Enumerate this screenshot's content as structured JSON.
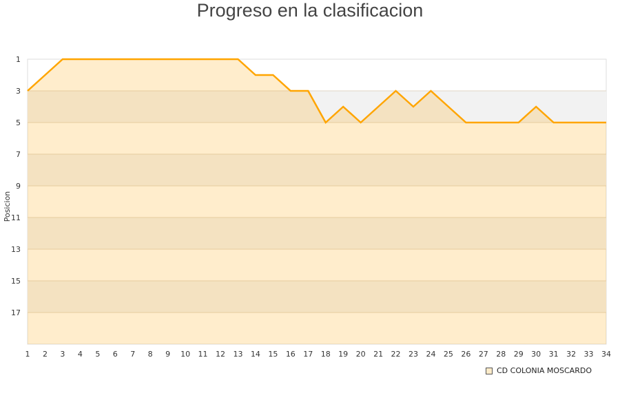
{
  "chart_data": {
    "type": "area",
    "title": "Progreso en la clasificacion",
    "xlabel": "",
    "ylabel": "Posicion",
    "x": [
      1,
      2,
      3,
      4,
      5,
      6,
      7,
      8,
      9,
      10,
      11,
      12,
      13,
      14,
      15,
      16,
      17,
      18,
      19,
      20,
      21,
      22,
      23,
      24,
      25,
      26,
      27,
      28,
      29,
      30,
      31,
      32,
      33,
      34
    ],
    "series": [
      {
        "name": "CD COLONIA MOSCARDO",
        "values": [
          3,
          2,
          1,
          1,
          1,
          1,
          1,
          1,
          1,
          1,
          1,
          1,
          1,
          2,
          2,
          3,
          3,
          5,
          4,
          5,
          4,
          3,
          4,
          3,
          4,
          5,
          5,
          5,
          5,
          4,
          5,
          5,
          5,
          5
        ]
      }
    ],
    "ylim": [
      1,
      19
    ],
    "y_inverted": true,
    "yticks": [
      1,
      3,
      5,
      7,
      9,
      11,
      13,
      15,
      17
    ],
    "xlim": [
      1,
      34
    ],
    "grid": true,
    "legend": "bottom-right",
    "line_color": "#ffa500",
    "fill_color": "#ffedcc"
  }
}
